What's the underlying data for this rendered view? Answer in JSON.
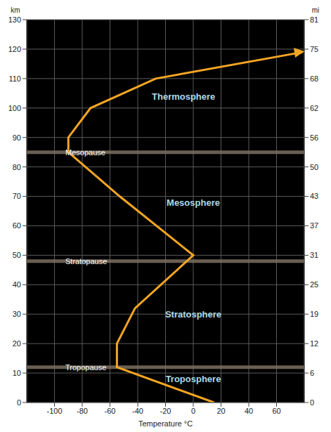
{
  "chart_data": {
    "type": "line",
    "x_label": "Temperature °C",
    "y_label": "km",
    "y2_label": "mi",
    "x": [
      15,
      -55,
      -55,
      -42,
      0,
      -53,
      -90,
      -90,
      -74,
      -27,
      79
    ],
    "values": [
      0,
      12,
      20,
      32,
      50,
      70,
      85,
      90,
      100,
      110,
      119
    ],
    "color": "#f5a623",
    "marker": "arrow",
    "grid": true,
    "xlim": [
      -120,
      80
    ],
    "xticks": [
      -100,
      -80,
      -60,
      -40,
      -20,
      0,
      20,
      40,
      60
    ],
    "ylim": [
      0,
      130
    ],
    "yticks": [
      0,
      10,
      20,
      30,
      40,
      50,
      60,
      70,
      80,
      90,
      100,
      110,
      120,
      130
    ],
    "y2lim": [
      0,
      80.78
    ],
    "y2ticks": [
      0,
      {
        "value": 6.21,
        "label": "6"
      },
      {
        "value": 12.43,
        "label": "12"
      },
      {
        "value": 18.64,
        "label": "19"
      },
      {
        "value": 24.85,
        "label": "25"
      },
      {
        "value": 31.07,
        "label": "31"
      },
      {
        "value": 37.28,
        "label": "37"
      },
      {
        "value": 43.5,
        "label": "43"
      },
      {
        "value": 49.71,
        "label": "50"
      },
      {
        "value": 55.92,
        "label": "56"
      },
      {
        "value": 62.14,
        "label": "62"
      },
      {
        "value": 68.35,
        "label": "68"
      },
      {
        "value": 74.56,
        "label": "75"
      },
      {
        "value": 80.78,
        "label": "81"
      }
    ],
    "boundaries": [
      {
        "label": "Tropopause",
        "value": 12
      },
      {
        "label": "Stratopause",
        "value": 48
      },
      {
        "label": "Mesopause",
        "value": 85
      }
    ],
    "annotations": [
      {
        "text": "Troposphere",
        "x": 0,
        "y": 8
      },
      {
        "text": "Stratosphere",
        "x": 0,
        "y": 30
      },
      {
        "text": "Mesosphere",
        "x": 0,
        "y": 68
      },
      {
        "text": "Thermosphere",
        "x": -7,
        "y": 104
      }
    ]
  }
}
